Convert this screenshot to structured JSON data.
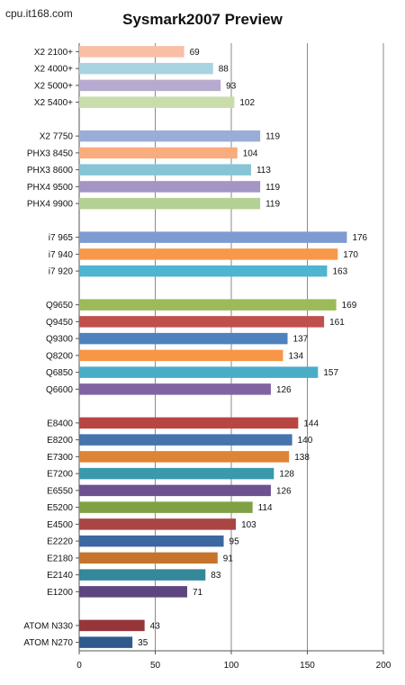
{
  "watermark": "cpu.it168.com",
  "chart_data": {
    "type": "bar",
    "orientation": "horizontal",
    "title": "Sysmark2007 Preview",
    "xlabel": "",
    "ylabel": "",
    "xlim": [
      0,
      200
    ],
    "x_ticks": [
      0,
      50,
      100,
      150,
      200
    ],
    "grid": true,
    "legend": "none",
    "groups": [
      {
        "categories": [
          "X2 2100+",
          "X2 4000+",
          "X2 5000+",
          "X2 5400+"
        ],
        "values": [
          69,
          88,
          93,
          102
        ],
        "colors": [
          "#F8BFA6",
          "#A9D3E1",
          "#B7AACF",
          "#C9DCAC"
        ]
      },
      {
        "categories": [
          "X2 7750",
          "PHX3 8450",
          "PHX3 8600",
          "PHX4 9500",
          "PHX4 9900"
        ],
        "values": [
          119,
          104,
          113,
          119,
          119
        ],
        "colors": [
          "#9AADD6",
          "#F9AC7D",
          "#86C4D6",
          "#A594C6",
          "#B3D195"
        ]
      },
      {
        "categories": [
          "i7 965",
          "i7 940",
          "i7 920"
        ],
        "values": [
          176,
          170,
          163
        ],
        "colors": [
          "#7E9BD1",
          "#F7984A",
          "#4EB4D2"
        ]
      },
      {
        "categories": [
          "Q9650",
          "Q9450",
          "Q9300",
          "Q8200",
          "Q6850",
          "Q6600"
        ],
        "values": [
          169,
          161,
          137,
          134,
          157,
          126
        ],
        "colors": [
          "#9BBB59",
          "#C0504D",
          "#4F81BD",
          "#F79646",
          "#4BACC6",
          "#8064A2"
        ]
      },
      {
        "categories": [
          "E8400",
          "E8200",
          "E7300",
          "E7200",
          "E6550",
          "E5200",
          "E4500",
          "E2220",
          "E2180",
          "E2140",
          "E1200"
        ],
        "values": [
          144,
          140,
          138,
          128,
          126,
          114,
          103,
          95,
          91,
          83,
          71
        ],
        "colors": [
          "#B94543",
          "#4674AD",
          "#DE8435",
          "#3B98AD",
          "#6C5290",
          "#7FA144",
          "#A94644",
          "#3D67A0",
          "#C6732B",
          "#34889A",
          "#5D4680"
        ]
      },
      {
        "categories": [
          "ATOM N330",
          "ATOM N270"
        ],
        "values": [
          43,
          35
        ],
        "colors": [
          "#96363A",
          "#2E5A8E"
        ]
      }
    ]
  }
}
